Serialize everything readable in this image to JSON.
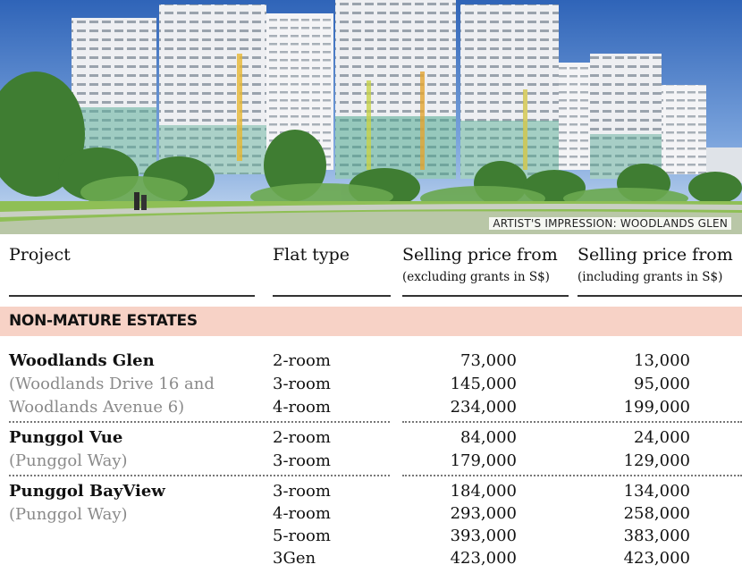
{
  "image": {
    "caption": "ARTIST'S IMPRESSION: WOODLANDS GLEN"
  },
  "table": {
    "headers": {
      "project": "Project",
      "flat_type": "Flat type",
      "price_excl": "Selling price from",
      "price_excl_sub": "(excluding grants in S$)",
      "price_incl": "Selling price from",
      "price_incl_sub": "(including grants in S$)"
    },
    "section": "NON-MATURE ESTATES",
    "projects": [
      {
        "name": "Woodlands Glen",
        "location_lines": [
          "(Woodlands Drive 16 and",
          "Woodlands Avenue 6)"
        ],
        "rows": [
          {
            "type": "2-room",
            "excl": "73,000",
            "incl": "13,000"
          },
          {
            "type": "3-room",
            "excl": "145,000",
            "incl": "95,000"
          },
          {
            "type": "4-room",
            "excl": "234,000",
            "incl": "199,000"
          }
        ]
      },
      {
        "name": "Punggol Vue",
        "location_lines": [
          "(Punggol Way)"
        ],
        "rows": [
          {
            "type": "2-room",
            "excl": "84,000",
            "incl": "24,000"
          },
          {
            "type": "3-room",
            "excl": "179,000",
            "incl": "129,000"
          }
        ]
      },
      {
        "name": "Punggol BayView",
        "location_lines": [
          "(Punggol Way)"
        ],
        "rows": [
          {
            "type": "3-room",
            "excl": "184,000",
            "incl": "134,000"
          },
          {
            "type": "4-room",
            "excl": "293,000",
            "incl": "258,000"
          },
          {
            "type": "5-room",
            "excl": "393,000",
            "incl": "383,000"
          },
          {
            "type": "3Gen",
            "excl": "423,000",
            "incl": "423,000"
          }
        ]
      }
    ]
  }
}
